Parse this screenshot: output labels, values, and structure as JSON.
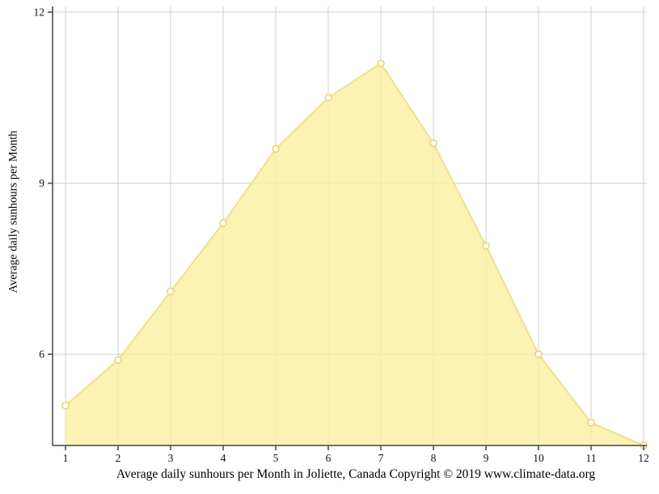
{
  "chart_data": {
    "type": "area",
    "title": "Average daily sunhours per Month in Joliette, Canada Copyright © 2019 www.climate-data.org",
    "xlabel": "",
    "ylabel": "Average daily sunhours per Month",
    "x": [
      1,
      2,
      3,
      4,
      5,
      6,
      7,
      8,
      9,
      10,
      11,
      12
    ],
    "values": [
      5.1,
      5.9,
      7.1,
      8.3,
      9.6,
      10.5,
      11.1,
      9.7,
      7.9,
      6.0,
      4.8,
      4.4
    ],
    "series_name": "Average daily sunhours",
    "xticks": [
      "1",
      "2",
      "3",
      "4",
      "5",
      "6",
      "7",
      "8",
      "9",
      "10",
      "11",
      "12"
    ],
    "yticks": [
      6,
      9,
      12
    ],
    "ylim": [
      4.4,
      12
    ],
    "xlim": [
      1,
      12
    ],
    "grid": true,
    "legend": "none",
    "colors": {
      "area_fill": "#FAEFA0",
      "area_fill_opacity": 0.8,
      "line": "#EFE089",
      "marker_fill": "#FFFFFF",
      "marker_stroke": "#E6D36B",
      "grid": "#CFCFCF",
      "axis": "#444444",
      "text": "#111111",
      "background": "#FFFFFF"
    }
  }
}
